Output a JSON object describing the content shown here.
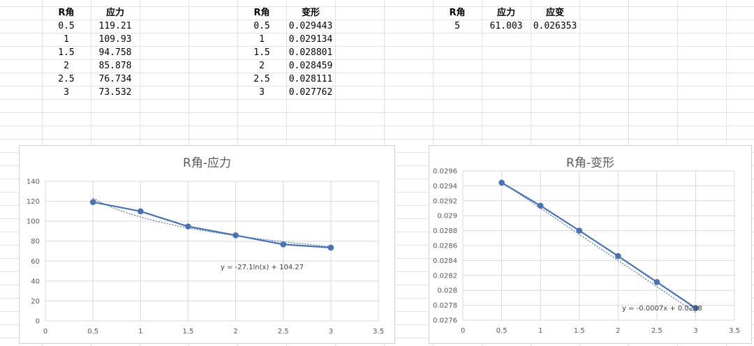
{
  "table1": {
    "headers": [
      "R角",
      "应力"
    ],
    "rows": [
      [
        "0.5",
        "119.21"
      ],
      [
        "1",
        "109.93"
      ],
      [
        "1.5",
        "94.758"
      ],
      [
        "2",
        "85.878"
      ],
      [
        "2.5",
        "76.734"
      ],
      [
        "3",
        "73.532"
      ]
    ]
  },
  "table2": {
    "headers": [
      "R角",
      "变形"
    ],
    "rows": [
      [
        "0.5",
        "0.029443"
      ],
      [
        "1",
        "0.029134"
      ],
      [
        "1.5",
        "0.028801"
      ],
      [
        "2",
        "0.028459"
      ],
      [
        "2.5",
        "0.028111"
      ],
      [
        "3",
        "0.027762"
      ]
    ]
  },
  "table3": {
    "headers": [
      "R角",
      "应力",
      "应变"
    ],
    "rows": [
      [
        "5",
        "61.003",
        "0.026353"
      ]
    ]
  },
  "colors": {
    "series": "#4a72b0",
    "grid": "#d9d9d9"
  },
  "chart_data": [
    {
      "type": "scatter",
      "title": "R角-应力",
      "x": [
        0.5,
        1,
        1.5,
        2,
        2.5,
        3
      ],
      "y": [
        119.21,
        109.93,
        94.758,
        85.878,
        76.734,
        73.532
      ],
      "xlim": [
        0,
        3.5
      ],
      "ylim": [
        0,
        140
      ],
      "xticks": [
        "0",
        "0.5",
        "1",
        "1.5",
        "2",
        "2.5",
        "3",
        "3.5"
      ],
      "yticks": [
        "0",
        "20",
        "40",
        "60",
        "80",
        "100",
        "120",
        "140"
      ],
      "grid": true,
      "trendline": {
        "kind": "log",
        "a": -27.1,
        "b": 104.27,
        "equation": "y = -27.1ln(x) + 104.27"
      }
    },
    {
      "type": "scatter",
      "title": "R角-变形",
      "x": [
        0.5,
        1,
        1.5,
        2,
        2.5,
        3
      ],
      "y": [
        0.029443,
        0.029134,
        0.028801,
        0.028459,
        0.028111,
        0.027762
      ],
      "xlim": [
        0,
        3.5
      ],
      "ylim": [
        0.0276,
        0.0296
      ],
      "xticks": [
        "0",
        "0.5",
        "1",
        "1.5",
        "2",
        "2.5",
        "3",
        "3.5"
      ],
      "yticks": [
        "0.0276",
        "0.0278",
        "0.028",
        "0.0282",
        "0.0284",
        "0.0286",
        "0.0288",
        "0.029",
        "0.0292",
        "0.0294",
        "0.0296"
      ],
      "grid": true,
      "trendline": {
        "kind": "linear",
        "a": -0.0007,
        "b": 0.0298,
        "equation": "y = -0.0007x + 0.0298"
      }
    }
  ]
}
